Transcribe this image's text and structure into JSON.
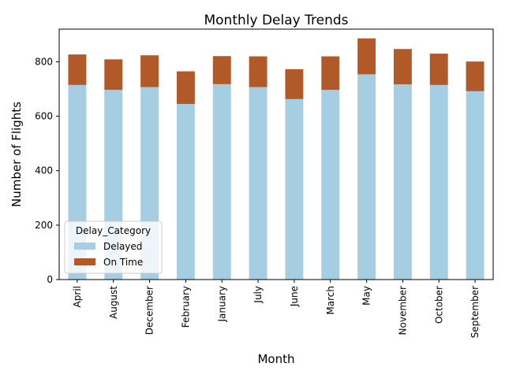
{
  "chart_data": {
    "type": "bar",
    "stacked": true,
    "title": "Monthly Delay Trends",
    "xlabel": "Month",
    "ylabel": "Number of Flights",
    "categories": [
      "April",
      "August",
      "December",
      "February",
      "January",
      "July",
      "June",
      "March",
      "May",
      "November",
      "October",
      "September"
    ],
    "series": [
      {
        "name": "Delayed",
        "color": "#a6cee3",
        "values": [
          715,
          697,
          707,
          645,
          718,
          707,
          663,
          697,
          754,
          717,
          715,
          692
        ]
      },
      {
        "name": "On Time",
        "color": "#b15928",
        "values": [
          112,
          112,
          117,
          120,
          103,
          113,
          110,
          123,
          132,
          130,
          115,
          109
        ]
      }
    ],
    "ylim": [
      0,
      920
    ],
    "yticks": [
      0,
      200,
      400,
      600,
      800
    ],
    "legend": {
      "title": "Delay_Category",
      "position": "lower-left"
    },
    "grid": false
  }
}
